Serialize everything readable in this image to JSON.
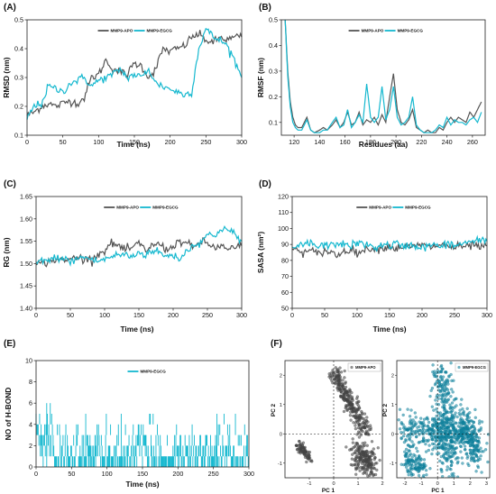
{
  "colors": {
    "apo": "#555555",
    "egcg": "#15b8cf",
    "pca_apo": "#444444",
    "pca_egcg": "#0d7f9a"
  },
  "chart_data": [
    {
      "id": "A",
      "type": "line",
      "panel_label": "(A)",
      "xlabel": "Time (ns)",
      "ylabel": "RMSD (nm)",
      "xlim": [
        0,
        300
      ],
      "ylim": [
        0.1,
        0.5
      ],
      "xticks": [
        "0",
        "50",
        "100",
        "150",
        "200",
        "250",
        "300"
      ],
      "yticks": [
        "0.1",
        "0.2",
        "0.3",
        "0.4",
        "0.5"
      ],
      "series": [
        {
          "name": "MMP9-APO",
          "color": "#555555",
          "x": [
            0,
            10,
            20,
            30,
            40,
            50,
            60,
            70,
            80,
            90,
            100,
            110,
            120,
            130,
            140,
            150,
            160,
            170,
            180,
            190,
            200,
            210,
            220,
            230,
            240,
            250,
            260,
            270,
            280,
            290,
            300
          ],
          "y": [
            0.17,
            0.18,
            0.2,
            0.21,
            0.2,
            0.21,
            0.22,
            0.21,
            0.23,
            0.3,
            0.31,
            0.36,
            0.33,
            0.32,
            0.31,
            0.35,
            0.34,
            0.3,
            0.33,
            0.4,
            0.39,
            0.4,
            0.41,
            0.44,
            0.45,
            0.43,
            0.42,
            0.44,
            0.43,
            0.44,
            0.44
          ]
        },
        {
          "name": "MMP9-EGCG",
          "color": "#15b8cf",
          "x": [
            0,
            10,
            20,
            30,
            40,
            50,
            60,
            70,
            80,
            90,
            100,
            110,
            120,
            130,
            140,
            150,
            160,
            170,
            180,
            190,
            200,
            210,
            220,
            230,
            240,
            250,
            260,
            270,
            280,
            290,
            300
          ],
          "y": [
            0.16,
            0.2,
            0.21,
            0.27,
            0.26,
            0.25,
            0.28,
            0.29,
            0.3,
            0.27,
            0.29,
            0.3,
            0.31,
            0.33,
            0.3,
            0.31,
            0.3,
            0.33,
            0.28,
            0.27,
            0.26,
            0.25,
            0.24,
            0.25,
            0.4,
            0.47,
            0.44,
            0.43,
            0.41,
            0.36,
            0.3
          ]
        }
      ]
    },
    {
      "id": "B",
      "type": "line",
      "panel_label": "(B)",
      "xlabel": "Residues (aa)",
      "ylabel": "RMSF (nm)",
      "xlim": [
        110,
        270
      ],
      "ylim": [
        0.05,
        0.5
      ],
      "xticks": [
        "120",
        "140",
        "160",
        "180",
        "200",
        "220",
        "240",
        "260"
      ],
      "yticks": [
        "0.1",
        "0.2",
        "0.3",
        "0.4",
        "0.5"
      ],
      "series": [
        {
          "name": "MMP9-APO",
          "color": "#555555",
          "x": [
            113,
            115,
            117,
            119,
            121,
            123,
            126,
            128,
            130,
            133,
            136,
            140,
            143,
            146,
            150,
            153,
            156,
            159,
            162,
            165,
            168,
            171,
            174,
            177,
            180,
            183,
            186,
            189,
            192,
            195,
            198,
            201,
            204,
            207,
            210,
            213,
            216,
            219,
            222,
            225,
            228,
            231,
            234,
            237,
            240,
            243,
            246,
            249,
            252,
            255,
            258,
            261,
            264,
            267
          ],
          "y": [
            0.5,
            0.3,
            0.18,
            0.12,
            0.09,
            0.08,
            0.08,
            0.1,
            0.12,
            0.07,
            0.06,
            0.07,
            0.08,
            0.07,
            0.09,
            0.11,
            0.08,
            0.1,
            0.14,
            0.09,
            0.1,
            0.14,
            0.09,
            0.11,
            0.1,
            0.12,
            0.09,
            0.13,
            0.1,
            0.2,
            0.29,
            0.15,
            0.1,
            0.09,
            0.11,
            0.15,
            0.08,
            0.07,
            0.06,
            0.07,
            0.06,
            0.06,
            0.08,
            0.07,
            0.1,
            0.12,
            0.1,
            0.12,
            0.11,
            0.1,
            0.14,
            0.12,
            0.15,
            0.18
          ]
        },
        {
          "name": "MMP9-EGCG",
          "color": "#15b8cf",
          "x": [
            113,
            115,
            117,
            119,
            121,
            123,
            126,
            128,
            130,
            133,
            136,
            140,
            143,
            146,
            150,
            153,
            156,
            159,
            162,
            165,
            168,
            171,
            174,
            177,
            180,
            183,
            186,
            189,
            192,
            195,
            198,
            201,
            204,
            207,
            210,
            213,
            216,
            219,
            222,
            225,
            228,
            231,
            234,
            237,
            240,
            243,
            246,
            249,
            252,
            255,
            258,
            261,
            264,
            267
          ],
          "y": [
            0.5,
            0.28,
            0.16,
            0.1,
            0.08,
            0.07,
            0.07,
            0.09,
            0.11,
            0.07,
            0.06,
            0.06,
            0.07,
            0.07,
            0.1,
            0.12,
            0.08,
            0.09,
            0.15,
            0.08,
            0.1,
            0.13,
            0.1,
            0.25,
            0.12,
            0.1,
            0.12,
            0.24,
            0.11,
            0.15,
            0.24,
            0.12,
            0.09,
            0.1,
            0.12,
            0.2,
            0.09,
            0.07,
            0.06,
            0.06,
            0.06,
            0.07,
            0.09,
            0.08,
            0.12,
            0.09,
            0.11,
            0.1,
            0.1,
            0.09,
            0.11,
            0.12,
            0.1,
            0.14
          ]
        }
      ]
    },
    {
      "id": "C",
      "type": "line",
      "panel_label": "(C)",
      "xlabel": "Time (ns)",
      "ylabel": "RG (nm)",
      "xlim": [
        0,
        300
      ],
      "ylim": [
        1.4,
        1.65
      ],
      "xticks": [
        "0",
        "50",
        "100",
        "150",
        "200",
        "250",
        "300"
      ],
      "yticks": [
        "1.40",
        "1.45",
        "1.50",
        "1.55",
        "1.60",
        "1.65"
      ],
      "series": [
        {
          "name": "MMP9-APO",
          "color": "#555555",
          "x": [
            0,
            10,
            20,
            30,
            40,
            50,
            60,
            70,
            80,
            90,
            100,
            110,
            120,
            130,
            140,
            150,
            160,
            170,
            180,
            190,
            200,
            210,
            220,
            230,
            240,
            250,
            260,
            270,
            280,
            290,
            300
          ],
          "y": [
            1.5,
            1.5,
            1.505,
            1.51,
            1.505,
            1.51,
            1.515,
            1.51,
            1.51,
            1.52,
            1.53,
            1.545,
            1.54,
            1.53,
            1.535,
            1.545,
            1.53,
            1.54,
            1.545,
            1.53,
            1.54,
            1.55,
            1.545,
            1.535,
            1.55,
            1.545,
            1.535,
            1.54,
            1.53,
            1.535,
            1.54
          ]
        },
        {
          "name": "MMP9-EGCG",
          "color": "#15b8cf",
          "x": [
            0,
            10,
            20,
            30,
            40,
            50,
            60,
            70,
            80,
            90,
            100,
            110,
            120,
            130,
            140,
            150,
            160,
            170,
            180,
            190,
            200,
            210,
            220,
            230,
            240,
            250,
            260,
            270,
            280,
            290,
            300
          ],
          "y": [
            1.5,
            1.51,
            1.505,
            1.515,
            1.51,
            1.505,
            1.51,
            1.515,
            1.51,
            1.505,
            1.51,
            1.515,
            1.52,
            1.52,
            1.515,
            1.525,
            1.52,
            1.53,
            1.525,
            1.515,
            1.52,
            1.51,
            1.53,
            1.54,
            1.55,
            1.565,
            1.56,
            1.58,
            1.575,
            1.565,
            1.55
          ]
        }
      ]
    },
    {
      "id": "D",
      "type": "line",
      "panel_label": "(D)",
      "xlabel": "Time (ns)",
      "ylabel": "SASA (nm²)",
      "xlim": [
        0,
        300
      ],
      "ylim": [
        50,
        120
      ],
      "xticks": [
        "0",
        "50",
        "100",
        "150",
        "200",
        "250",
        "300"
      ],
      "yticks": [
        "50",
        "60",
        "70",
        "80",
        "90",
        "100",
        "110",
        "120"
      ],
      "series": [
        {
          "name": "MMP9-APO",
          "color": "#555555",
          "x": [
            0,
            10,
            20,
            30,
            40,
            50,
            60,
            70,
            80,
            90,
            100,
            110,
            120,
            130,
            140,
            150,
            160,
            170,
            180,
            190,
            200,
            210,
            220,
            230,
            240,
            250,
            260,
            270,
            280,
            290,
            300
          ],
          "y": [
            87,
            86,
            85,
            86,
            84,
            86,
            85,
            83,
            86,
            87,
            85,
            86,
            88,
            87,
            88,
            89,
            87,
            89,
            88,
            89,
            90,
            88,
            89,
            90,
            89,
            88,
            89,
            88,
            90,
            88,
            89
          ]
        },
        {
          "name": "MMP9-EGCG",
          "color": "#15b8cf",
          "x": [
            0,
            10,
            20,
            30,
            40,
            50,
            60,
            70,
            80,
            90,
            100,
            110,
            120,
            130,
            140,
            150,
            160,
            170,
            180,
            190,
            200,
            210,
            220,
            230,
            240,
            250,
            260,
            270,
            280,
            290,
            300
          ],
          "y": [
            87,
            89,
            90,
            91,
            88,
            90,
            89,
            91,
            90,
            89,
            91,
            90,
            89,
            88,
            90,
            89,
            91,
            88,
            90,
            89,
            88,
            89,
            90,
            88,
            91,
            89,
            90,
            92,
            91,
            93,
            92
          ]
        }
      ]
    },
    {
      "id": "E",
      "type": "line",
      "panel_label": "(E)",
      "xlabel": "Time (ns)",
      "ylabel": "NO of H-BOND",
      "xlim": [
        0,
        300
      ],
      "ylim": [
        0,
        10
      ],
      "xticks": [
        "0",
        "50",
        "100",
        "150",
        "200",
        "250",
        "300"
      ],
      "yticks": [
        "0",
        "2",
        "4",
        "6",
        "8",
        "10"
      ],
      "series": [
        {
          "name": "MMP9-EGCG",
          "color": "#15b8cf",
          "y_min": 0,
          "y_max": 6,
          "mean": 1.8
        }
      ]
    },
    {
      "id": "F",
      "type": "scatter",
      "panel_label": "(F)",
      "xlabel": "PC 1",
      "ylabel": "PC 2",
      "subplots": [
        {
          "name": "MMP9-APO",
          "color": "#444444",
          "xlim": [
            -2,
            2
          ],
          "ylim": [
            -1.5,
            2.5
          ],
          "xticks": [
            "-1",
            "0",
            "1",
            "2"
          ],
          "yticks": [
            "-1",
            "0",
            "1",
            "2"
          ],
          "clusters": [
            {
              "x0": 0.0,
              "y0": 2.1,
              "x1": 1.35,
              "y1": 0.05,
              "spread": 0.13,
              "n": 280
            },
            {
              "x0": 1.0,
              "y0": -0.5,
              "x1": 1.45,
              "y1": -1.2,
              "spread": 0.22,
              "n": 200
            },
            {
              "x0": -1.4,
              "y0": -0.35,
              "x1": -1.0,
              "y1": -0.85,
              "spread": 0.08,
              "n": 80
            }
          ]
        },
        {
          "name": "MMP9-EGCG",
          "color": "#0d7f9a",
          "xlim": [
            -2.5,
            3.2
          ],
          "ylim": [
            -1.5,
            2.5
          ],
          "xticks": [
            "-2",
            "-1",
            "0",
            "1",
            "2",
            "3"
          ],
          "yticks": [
            "-1",
            "0",
            "1",
            "2"
          ],
          "clusters": [
            {
              "x0": -2.0,
              "y0": 0.1,
              "x1": 2.4,
              "y1": 0.0,
              "spread": 0.3,
              "n": 420
            },
            {
              "x0": 0.2,
              "y0": 2.2,
              "x1": 0.8,
              "y1": -1.2,
              "spread": 0.35,
              "n": 300
            },
            {
              "x0": -1.9,
              "y0": -0.8,
              "x1": -0.8,
              "y1": -1.3,
              "spread": 0.22,
              "n": 120
            },
            {
              "x0": 1.6,
              "y0": 0.6,
              "x1": 2.6,
              "y1": -1.0,
              "spread": 0.25,
              "n": 150
            }
          ]
        }
      ]
    }
  ]
}
